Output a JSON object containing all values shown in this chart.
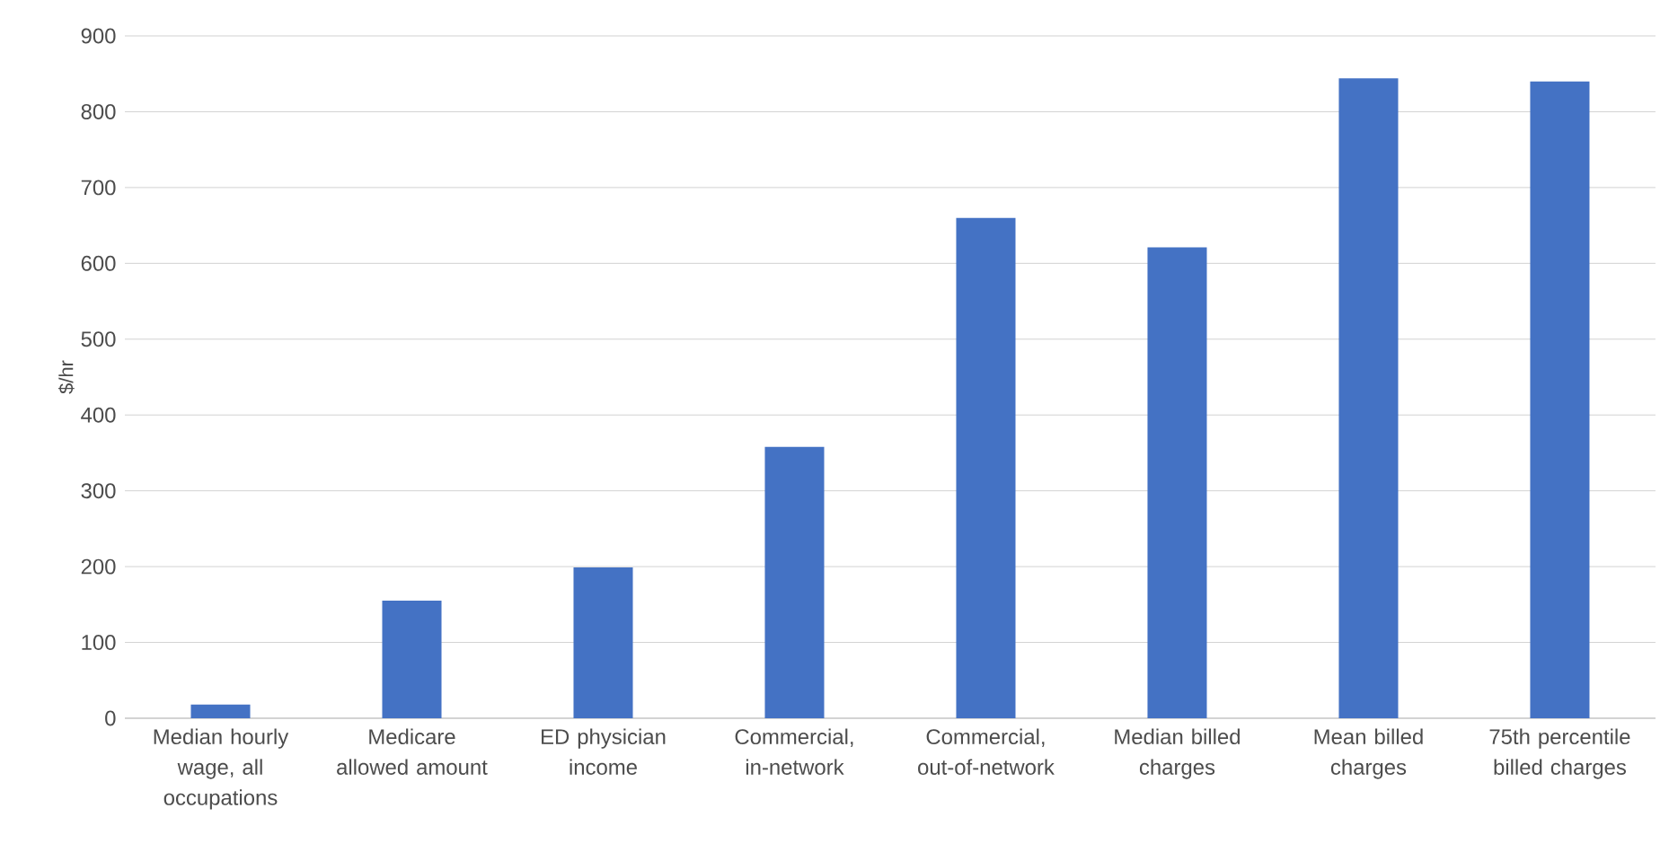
{
  "chart_data": {
    "type": "bar",
    "ylabel": "$/hr",
    "categories": [
      "Median hourly wage, all occupations",
      "Medicare allowed amount",
      "ED physician income",
      "Commercial, in-network",
      "Commercial, out-of-network",
      "Median billed charges",
      "Mean billed charges",
      "75th percentile billed charges"
    ],
    "values": [
      18,
      155,
      199,
      358,
      660,
      621,
      844,
      840
    ],
    "color": "#4472c4",
    "ylim": [
      0,
      900
    ],
    "yticks": [
      0,
      100,
      200,
      300,
      400,
      500,
      600,
      700,
      800,
      900
    ],
    "grid": "y"
  }
}
